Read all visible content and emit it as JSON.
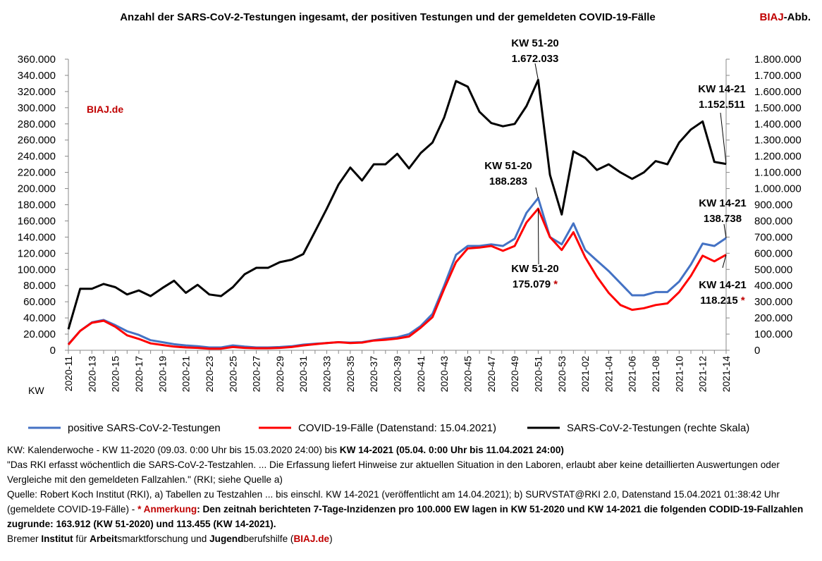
{
  "brand": {
    "prefix": "BIAJ",
    "suffix": "-Abb.",
    "watermark": "BIAJ.de",
    "color": "#c00000"
  },
  "chart_data": {
    "type": "line",
    "title": "Anzahl der SARS-CoV-2-Testungen ingesamt, der positiven Testungen  und der gemeldeten COVID-19-Fälle",
    "xlabel": "KW",
    "categories": [
      "2020-11",
      "2020-12",
      "2020-13",
      "2020-14",
      "2020-15",
      "2020-16",
      "2020-17",
      "2020-18",
      "2020-19",
      "2020-20",
      "2020-21",
      "2020-22",
      "2020-23",
      "2020-24",
      "2020-25",
      "2020-26",
      "2020-27",
      "2020-28",
      "2020-29",
      "2020-30",
      "2020-31",
      "2020-32",
      "2020-33",
      "2020-34",
      "2020-35",
      "2020-36",
      "2020-37",
      "2020-38",
      "2020-39",
      "2020-40",
      "2020-41",
      "2020-42",
      "2020-43",
      "2020-44",
      "2020-45",
      "2020-46",
      "2020-47",
      "2020-48",
      "2020-49",
      "2020-50",
      "2020-51",
      "2020-52",
      "2020-53",
      "2021-01",
      "2021-02",
      "2021-03",
      "2021-04",
      "2021-05",
      "2021-06",
      "2021-07",
      "2021-08",
      "2021-09",
      "2021-10",
      "2021-11",
      "2021-12",
      "2021-13",
      "2021-14"
    ],
    "y_left": {
      "min": 0,
      "max": 360000,
      "step": 20000,
      "tick_labels": [
        "0",
        "20.000",
        "40.000",
        "60.000",
        "80.000",
        "100.000",
        "120.000",
        "140.000",
        "160.000",
        "180.000",
        "200.000",
        "220.000",
        "240.000",
        "260.000",
        "280.000",
        "300.000",
        "320.000",
        "340.000",
        "360.000"
      ]
    },
    "y_right": {
      "min": 0,
      "max": 1800000,
      "step": 100000,
      "tick_labels": [
        "0",
        "100.000",
        "200.000",
        "300.000",
        "400.000",
        "500.000",
        "600.000",
        "700.000",
        "800.000",
        "900.000",
        "1.000.000",
        "1.100.000",
        "1.200.000",
        "1.300.000",
        "1.400.000",
        "1.500.000",
        "1.600.000",
        "1.700.000",
        "1.800.000"
      ]
    },
    "series": [
      {
        "name": "positive SARS-CoV-2-Testungen",
        "axis": "left",
        "color": "#4472c4",
        "values": [
          7500,
          24000,
          34500,
          37500,
          31000,
          23500,
          19000,
          12500,
          10000,
          7500,
          6000,
          5000,
          3500,
          3500,
          6000,
          4500,
          3500,
          3500,
          4000,
          5000,
          7000,
          8000,
          9000,
          10000,
          9500,
          10000,
          12500,
          14500,
          16000,
          20000,
          30000,
          45000,
          80000,
          118000,
          129000,
          129000,
          131000,
          129000,
          138000,
          170000,
          188283,
          140000,
          131000,
          157000,
          124000,
          111000,
          98000,
          83000,
          68000,
          68000,
          72000,
          72000,
          85000,
          106000,
          132000,
          129000,
          138738
        ]
      },
      {
        "name": "COVID-19-Fälle (Datenstand: 15.04.2021)",
        "axis": "left",
        "color": "#ff0000",
        "values": [
          7000,
          24000,
          34000,
          36500,
          29000,
          18500,
          14000,
          8500,
          6500,
          4500,
          3500,
          3000,
          2000,
          2000,
          4000,
          3000,
          2500,
          2500,
          3000,
          4000,
          6000,
          7500,
          9000,
          10000,
          9000,
          9500,
          12000,
          13000,
          14500,
          17000,
          28000,
          41000,
          76000,
          109000,
          126000,
          127000,
          129000,
          123000,
          129000,
          158000,
          175079,
          140000,
          124000,
          146000,
          115000,
          91000,
          71000,
          56000,
          50000,
          52000,
          56000,
          58000,
          72000,
          92000,
          117000,
          110000,
          118215
        ]
      },
      {
        "name": "SARS-CoV-2-Testungen (rechte Skala)",
        "axis": "right",
        "color": "#000000",
        "values": [
          130000,
          380000,
          380000,
          410000,
          390000,
          345000,
          370000,
          335000,
          385000,
          430000,
          355000,
          405000,
          345000,
          335000,
          390000,
          470000,
          510000,
          510000,
          545000,
          560000,
          595000,
          735000,
          875000,
          1025000,
          1130000,
          1050000,
          1150000,
          1150000,
          1215000,
          1125000,
          1220000,
          1285000,
          1440000,
          1665000,
          1630000,
          1475000,
          1405000,
          1385000,
          1400000,
          1510000,
          1672033,
          1085000,
          840000,
          1230000,
          1190000,
          1115000,
          1150000,
          1100000,
          1060000,
          1100000,
          1170000,
          1150000,
          1285000,
          1365000,
          1415000,
          1165000,
          1152511
        ]
      }
    ],
    "annotations": [
      {
        "series": 2,
        "index": 40,
        "lines": [
          "KW 51-20",
          "1.672.033"
        ],
        "star": false
      },
      {
        "series": 2,
        "index": 56,
        "lines": [
          "KW 14-21",
          "1.152.511"
        ],
        "star": false
      },
      {
        "series": 0,
        "index": 40,
        "lines": [
          "KW 51-20",
          "188.283"
        ],
        "star": false
      },
      {
        "series": 0,
        "index": 56,
        "lines": [
          "KW 14-21",
          "138.738"
        ],
        "star": false
      },
      {
        "series": 1,
        "index": 40,
        "lines": [
          "KW 51-20",
          "175.079"
        ],
        "star": true
      },
      {
        "series": 1,
        "index": 56,
        "lines": [
          "KW 14-21",
          "118.215"
        ],
        "star": true
      }
    ],
    "legend": "bottom",
    "grid": false
  },
  "notes": {
    "line1_a": "KW: Kalenderwoche - KW 11-2020 (09.03. 0:00 Uhr bis 15.03.2020 24:00) bis ",
    "line1_b": "KW 14-2021 (05.04. 0:00 Uhr bis 11.04.2021 24:00)",
    "quote": "\"Das RKI erfasst wöchentlich die SARS-CoV-2-Testzahlen. ... Die Erfassung liefert Hinweise zur aktuellen Situation in den Laboren, erlaubt aber keine detaillierten Auswertungen oder Vergleiche mit den gemeldeten Fallzahlen.\" (RKI; siehe Quelle a)",
    "source_a": "Quelle: Robert Koch Institut (RKI), a) Tabellen zu Testzahlen ... bis einschl. KW 14-2021 (veröffentlicht am 14.04.2021); b) SURVSTAT@RKI 2.0, Datenstand 15.04.2021 01:38:42 Uhr (gemeldete COVID-19-Fälle) - ",
    "star_label": "* Anmerkung",
    "remark": ": Den zeitnah berichteten 7-Tage-Inzidenzen pro 100.000 EW lagen in KW 51-2020 und KW 14-2021 die folgenden CODID-19-Fallzahlen zugrunde: 163.912 (KW 51-2020) und 113.455 (KW 14-2021).",
    "footer_parts": [
      {
        "t": "Bremer ",
        "b": false
      },
      {
        "t": "Institut",
        "b": true
      },
      {
        "t": " für ",
        "b": false
      },
      {
        "t": "Arbeit",
        "b": true
      },
      {
        "t": "smarktforschung und ",
        "b": false
      },
      {
        "t": "Jugend",
        "b": true
      },
      {
        "t": "berufshilfe (",
        "b": false
      }
    ],
    "footer_link": "BIAJ.de",
    "footer_end": ")"
  }
}
